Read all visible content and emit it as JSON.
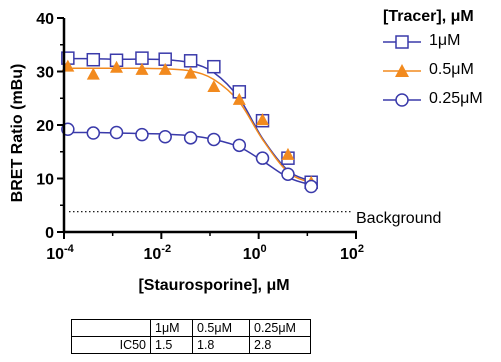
{
  "chart_data": {
    "type": "scatter",
    "xlabel": "[Staurosporine], μM",
    "ylabel": "BRET Ratio (mBu)",
    "xscale": "log",
    "xlim": [
      0.0001,
      100
    ],
    "ylim": [
      0,
      40
    ],
    "x_ticks": [
      0.0001,
      0.01,
      1,
      100
    ],
    "x_tick_labels": [
      {
        "base": "10",
        "exp": "-4"
      },
      {
        "base": "10",
        "exp": "-2"
      },
      {
        "base": "10",
        "exp": "0"
      },
      {
        "base": "10",
        "exp": "2"
      }
    ],
    "y_ticks": [
      0,
      10,
      20,
      30,
      40
    ],
    "y_tick_labels": [
      "0",
      "10",
      "20",
      "30",
      "40"
    ],
    "legend": {
      "title": "[Tracer], μM",
      "placement": "right"
    },
    "series": [
      {
        "name": "1μM",
        "marker": "square-open",
        "color": "#3a3aaa",
        "x": [
          0.00012,
          0.0004,
          0.0012,
          0.004,
          0.012,
          0.04,
          0.12,
          0.4,
          1.2,
          4,
          12
        ],
        "y": [
          32.5,
          32.2,
          32.1,
          32.5,
          32.3,
          32.0,
          30.9,
          26.2,
          20.8,
          13.8,
          9.3
        ],
        "fit": [
          32.4,
          32.4,
          32.3,
          32.3,
          32.2,
          31.6,
          29.8,
          25.0,
          17.5,
          11.5,
          9.5
        ]
      },
      {
        "name": "0.5μM",
        "marker": "triangle-filled",
        "color": "#f28a1e",
        "x": [
          0.00012,
          0.0004,
          0.0012,
          0.004,
          0.012,
          0.04,
          0.12,
          0.4,
          1.2,
          4,
          12
        ],
        "y": [
          31.0,
          29.5,
          30.8,
          30.4,
          30.4,
          29.7,
          27.2,
          24.8,
          21.0,
          14.5,
          9.3
        ],
        "fit": [
          30.6,
          30.6,
          30.6,
          30.6,
          30.5,
          30.1,
          28.5,
          24.3,
          17.3,
          11.2,
          9.2
        ]
      },
      {
        "name": "0.25μM",
        "marker": "circle-open",
        "color": "#3a3aaa",
        "x": [
          0.00012,
          0.0004,
          0.0012,
          0.004,
          0.012,
          0.04,
          0.12,
          0.4,
          1.2,
          4,
          12
        ],
        "y": [
          19.2,
          18.5,
          18.6,
          18.2,
          17.8,
          17.6,
          17.3,
          16.2,
          13.8,
          10.8,
          8.5
        ],
        "fit": [
          18.6,
          18.6,
          18.5,
          18.4,
          18.3,
          18.0,
          17.3,
          15.9,
          13.3,
          10.2,
          8.8
        ]
      }
    ],
    "annotations": [
      {
        "label": "Background",
        "y": 3.8,
        "style": "dotted"
      }
    ],
    "table": {
      "headers": [
        "",
        "1μM",
        "0.5μM",
        "0.25μM"
      ],
      "rows": [
        [
          "IC50",
          "1.5",
          "1.8",
          "2.8"
        ]
      ]
    }
  }
}
